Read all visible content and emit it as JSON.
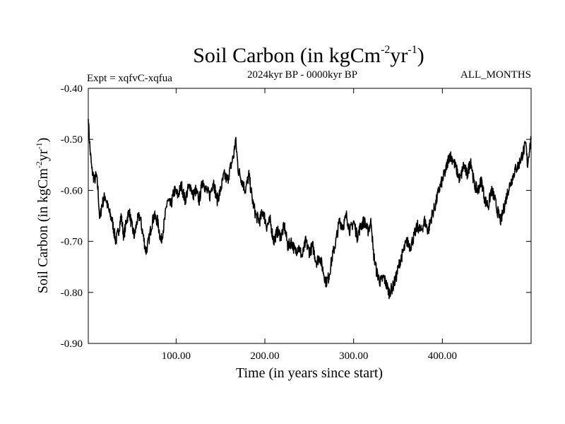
{
  "chart_data": {
    "type": "line",
    "title": {
      "base": "Soil Carbon (in kgCm",
      "exp1": "-2",
      "mid": "yr",
      "exp2": "-1",
      "end": ")"
    },
    "subtitle_left": "Expt = xqfvC-xqfua",
    "subtitle_center": "2024kyr BP - 0000kyr BP",
    "subtitle_right": "ALL_MONTHS",
    "xlabel": "Time (in years since start)",
    "ylabel": {
      "base": "Soil Carbon (in kgCm",
      "exp1": "-2",
      "mid": "yr",
      "exp2": "-1",
      "end": ")"
    },
    "xlim": [
      1,
      500
    ],
    "ylim": [
      -0.9,
      -0.4
    ],
    "xticks": [
      {
        "value": 100,
        "label": "100.00"
      },
      {
        "value": 200,
        "label": "200.00"
      },
      {
        "value": 300,
        "label": "300.00"
      },
      {
        "value": 400,
        "label": "400.00"
      }
    ],
    "yticks": [
      {
        "value": -0.4,
        "label": "-0.40"
      },
      {
        "value": -0.5,
        "label": "-0.50"
      },
      {
        "value": -0.6,
        "label": "-0.60"
      },
      {
        "value": -0.7,
        "label": "-0.70"
      },
      {
        "value": -0.8,
        "label": "-0.80"
      },
      {
        "value": -0.9,
        "label": "-0.90"
      }
    ],
    "series": [
      {
        "name": "xqfvC-xqfua",
        "color": "#000000",
        "x": [
          1,
          3,
          5,
          8,
          10,
          12,
          14,
          16,
          20,
          24,
          28,
          32,
          35,
          38,
          41,
          44,
          47,
          50,
          53,
          56,
          59,
          62,
          66,
          69,
          72,
          75,
          79,
          83,
          87,
          90,
          94,
          98,
          102,
          106,
          110,
          113,
          116,
          119,
          122,
          126,
          130,
          134,
          138,
          142,
          146,
          150,
          154,
          158,
          162,
          165,
          167,
          170,
          174,
          178,
          182,
          186,
          190,
          194,
          198,
          202,
          206,
          210,
          214,
          218,
          222,
          226,
          230,
          234,
          238,
          242,
          246,
          250,
          254,
          258,
          262,
          266,
          269,
          272,
          276,
          280,
          284,
          288,
          292,
          296,
          300,
          304,
          308,
          312,
          316,
          318,
          320,
          322,
          326,
          330,
          334,
          338,
          340,
          344,
          348,
          352,
          356,
          360,
          364,
          368,
          372,
          376,
          380,
          384,
          388,
          392,
          396,
          400,
          404,
          408,
          412,
          416,
          420,
          424,
          428,
          432,
          436,
          440,
          444,
          448,
          452,
          455,
          458,
          462,
          466,
          470,
          474,
          478,
          482,
          486,
          490,
          494,
          496,
          498,
          500
        ],
        "y": [
          -0.46,
          -0.52,
          -0.56,
          -0.58,
          -0.57,
          -0.6,
          -0.66,
          -0.63,
          -0.61,
          -0.64,
          -0.66,
          -0.7,
          -0.68,
          -0.65,
          -0.69,
          -0.66,
          -0.64,
          -0.67,
          -0.69,
          -0.66,
          -0.65,
          -0.68,
          -0.72,
          -0.7,
          -0.67,
          -0.65,
          -0.66,
          -0.7,
          -0.66,
          -0.62,
          -0.63,
          -0.6,
          -0.61,
          -0.59,
          -0.62,
          -0.6,
          -0.59,
          -0.61,
          -0.6,
          -0.62,
          -0.58,
          -0.6,
          -0.61,
          -0.58,
          -0.62,
          -0.6,
          -0.57,
          -0.58,
          -0.55,
          -0.53,
          -0.5,
          -0.56,
          -0.58,
          -0.6,
          -0.57,
          -0.62,
          -0.65,
          -0.66,
          -0.64,
          -0.67,
          -0.66,
          -0.7,
          -0.68,
          -0.69,
          -0.67,
          -0.71,
          -0.7,
          -0.72,
          -0.71,
          -0.73,
          -0.7,
          -0.72,
          -0.71,
          -0.74,
          -0.73,
          -0.76,
          -0.78,
          -0.77,
          -0.73,
          -0.7,
          -0.66,
          -0.67,
          -0.65,
          -0.68,
          -0.66,
          -0.69,
          -0.67,
          -0.66,
          -0.68,
          -0.67,
          -0.66,
          -0.72,
          -0.76,
          -0.78,
          -0.77,
          -0.79,
          -0.8,
          -0.79,
          -0.77,
          -0.74,
          -0.72,
          -0.7,
          -0.71,
          -0.69,
          -0.67,
          -0.68,
          -0.66,
          -0.68,
          -0.65,
          -0.63,
          -0.6,
          -0.58,
          -0.56,
          -0.53,
          -0.54,
          -0.56,
          -0.58,
          -0.55,
          -0.57,
          -0.54,
          -0.59,
          -0.6,
          -0.58,
          -0.62,
          -0.63,
          -0.6,
          -0.61,
          -0.64,
          -0.66,
          -0.63,
          -0.6,
          -0.58,
          -0.56,
          -0.55,
          -0.53,
          -0.51,
          -0.55,
          -0.52,
          -0.5
        ]
      }
    ]
  }
}
